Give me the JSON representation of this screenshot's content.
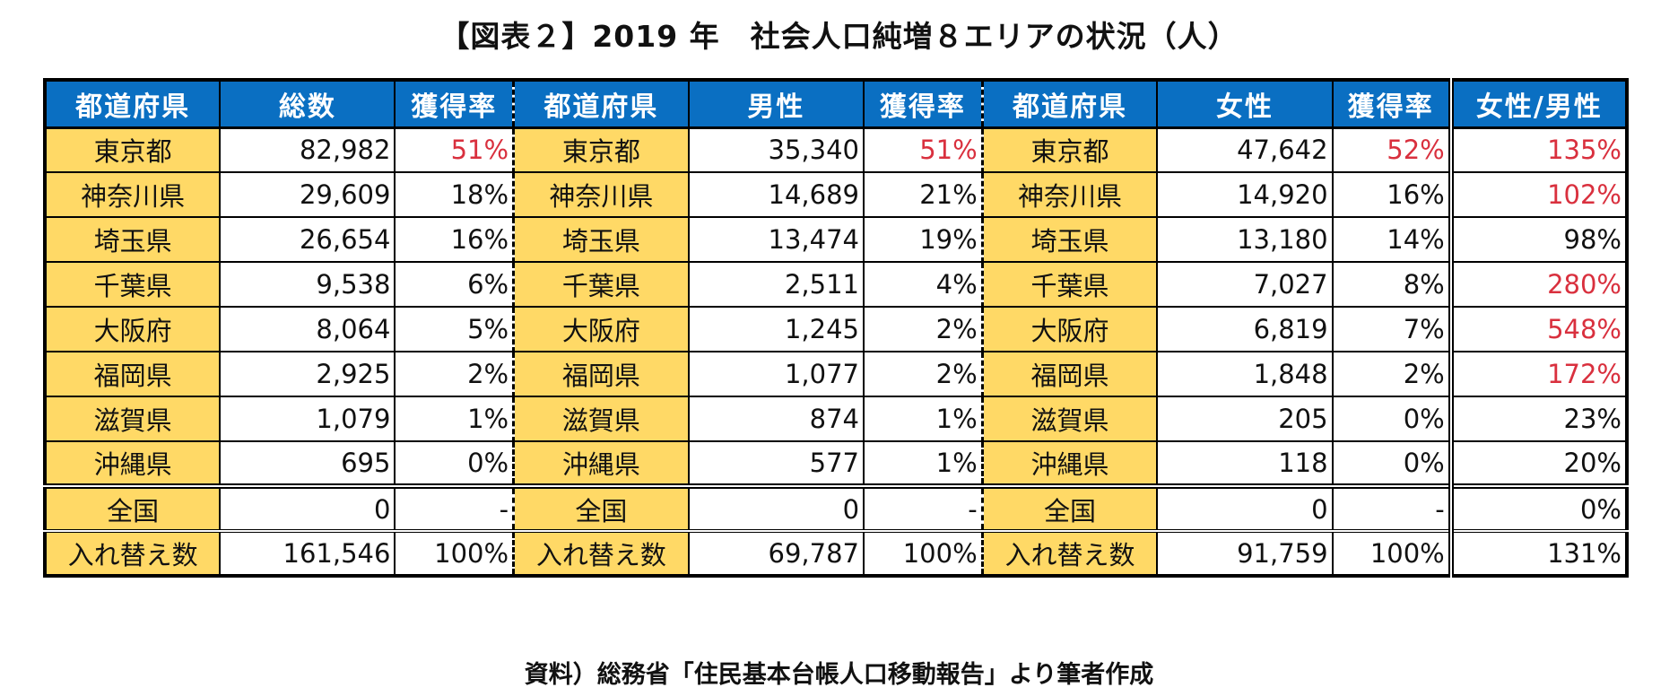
{
  "title": "【図表２】2019 年　社会人口純増８エリアの状況（人）",
  "headers": [
    "都道府県",
    "総数",
    "獲得率",
    "都道府県",
    "男性",
    "獲得率",
    "都道府県",
    "女性",
    "獲得率",
    "女性/男性"
  ],
  "rows": [
    {
      "pref": "東京都",
      "total": "82,982",
      "total_rate": "51%",
      "male": "35,340",
      "male_rate": "51%",
      "female": "47,642",
      "female_rate": "52%",
      "ratio": "135%"
    },
    {
      "pref": "神奈川県",
      "total": "29,609",
      "total_rate": "18%",
      "male": "14,689",
      "male_rate": "21%",
      "female": "14,920",
      "female_rate": "16%",
      "ratio": "102%"
    },
    {
      "pref": "埼玉県",
      "total": "26,654",
      "total_rate": "16%",
      "male": "13,474",
      "male_rate": "19%",
      "female": "13,180",
      "female_rate": "14%",
      "ratio": "98%"
    },
    {
      "pref": "千葉県",
      "total": "9,538",
      "total_rate": "6%",
      "male": "2,511",
      "male_rate": "4%",
      "female": "7,027",
      "female_rate": "8%",
      "ratio": "280%"
    },
    {
      "pref": "大阪府",
      "total": "8,064",
      "total_rate": "5%",
      "male": "1,245",
      "male_rate": "2%",
      "female": "6,819",
      "female_rate": "7%",
      "ratio": "548%"
    },
    {
      "pref": "福岡県",
      "total": "2,925",
      "total_rate": "2%",
      "male": "1,077",
      "male_rate": "2%",
      "female": "1,848",
      "female_rate": "2%",
      "ratio": "172%"
    },
    {
      "pref": "滋賀県",
      "total": "1,079",
      "total_rate": "1%",
      "male": "874",
      "male_rate": "1%",
      "female": "205",
      "female_rate": "0%",
      "ratio": "23%"
    },
    {
      "pref": "沖縄県",
      "total": "695",
      "total_rate": "0%",
      "male": "577",
      "male_rate": "1%",
      "female": "118",
      "female_rate": "0%",
      "ratio": "20%"
    },
    {
      "pref": "全国",
      "total": "0",
      "total_rate": "-",
      "male": "0",
      "male_rate": "-",
      "female": "0",
      "female_rate": "-",
      "ratio": "0%"
    },
    {
      "pref": "入れ替え数",
      "total": "161,546",
      "total_rate": "100%",
      "male": "69,787",
      "male_rate": "100%",
      "female": "91,759",
      "female_rate": "100%",
      "ratio": "131%"
    }
  ],
  "colors": {
    "header_bg": "#0a6fc2",
    "pref_bg": "#ffd966",
    "highlight_text": "#d9303e"
  },
  "source": "資料）総務省「住民基本台帳人口移動報告」より筆者作成"
}
